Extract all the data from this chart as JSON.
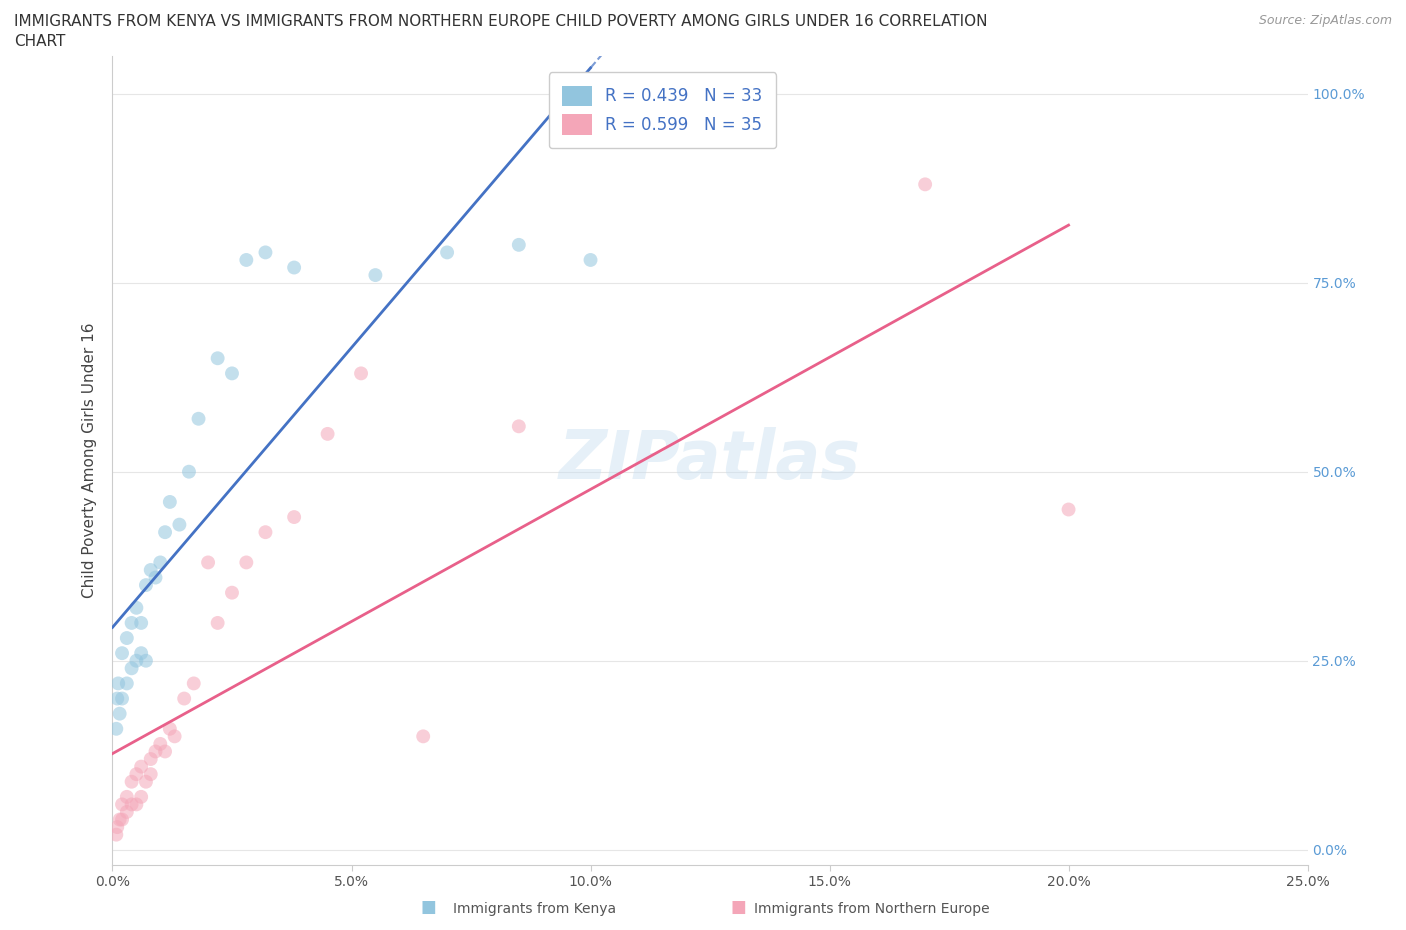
{
  "title_line1": "IMMIGRANTS FROM KENYA VS IMMIGRANTS FROM NORTHERN EUROPE CHILD POVERTY AMONG GIRLS UNDER 16 CORRELATION",
  "title_line2": "CHART",
  "source": "Source: ZipAtlas.com",
  "ylabel": "Child Poverty Among Girls Under 16",
  "watermark": "ZIPatlas",
  "color_kenya": "#92c5de",
  "color_north_europe": "#f4a6b8",
  "color_line_kenya": "#4472c4",
  "color_line_ne": "#e8608a",
  "color_grid": "#e0e0e0",
  "background_color": "#ffffff",
  "title_fontsize": 11,
  "axis_label_fontsize": 11,
  "tick_fontsize": 10,
  "legend_fontsize": 12,
  "source_fontsize": 9,
  "scatter_size": 100,
  "scatter_alpha": 0.55,
  "kenya_x": [
    0.0008,
    0.001,
    0.0012,
    0.0015,
    0.002,
    0.002,
    0.003,
    0.003,
    0.004,
    0.004,
    0.005,
    0.005,
    0.006,
    0.006,
    0.007,
    0.007,
    0.008,
    0.009,
    0.01,
    0.011,
    0.012,
    0.014,
    0.016,
    0.018,
    0.022,
    0.025,
    0.028,
    0.032,
    0.038,
    0.055,
    0.07,
    0.085,
    0.1
  ],
  "kenya_y": [
    0.16,
    0.2,
    0.22,
    0.18,
    0.2,
    0.26,
    0.22,
    0.28,
    0.24,
    0.3,
    0.25,
    0.32,
    0.26,
    0.3,
    0.25,
    0.35,
    0.37,
    0.36,
    0.38,
    0.42,
    0.46,
    0.43,
    0.5,
    0.57,
    0.65,
    0.63,
    0.78,
    0.79,
    0.77,
    0.76,
    0.79,
    0.8,
    0.78
  ],
  "ne_x": [
    0.0008,
    0.001,
    0.0015,
    0.002,
    0.002,
    0.003,
    0.003,
    0.004,
    0.004,
    0.005,
    0.005,
    0.006,
    0.006,
    0.007,
    0.008,
    0.008,
    0.009,
    0.01,
    0.011,
    0.012,
    0.013,
    0.015,
    0.017,
    0.02,
    0.022,
    0.025,
    0.028,
    0.032,
    0.038,
    0.045,
    0.052,
    0.065,
    0.085,
    0.17,
    0.2
  ],
  "ne_y": [
    0.02,
    0.03,
    0.04,
    0.04,
    0.06,
    0.05,
    0.07,
    0.06,
    0.09,
    0.06,
    0.1,
    0.07,
    0.11,
    0.09,
    0.1,
    0.12,
    0.13,
    0.14,
    0.13,
    0.16,
    0.15,
    0.2,
    0.22,
    0.38,
    0.3,
    0.34,
    0.38,
    0.42,
    0.44,
    0.55,
    0.63,
    0.15,
    0.56,
    0.88,
    0.45
  ],
  "xlim": [
    0.0,
    0.25
  ],
  "ylim": [
    -0.02,
    1.05
  ],
  "xticks": [
    0.0,
    0.05,
    0.1,
    0.15,
    0.2,
    0.25
  ],
  "yticks": [
    0.0,
    0.25,
    0.5,
    0.75,
    1.0
  ],
  "xticklabels": [
    "0.0%",
    "5.0%",
    "10.0%",
    "15.0%",
    "20.0%",
    "25.0%"
  ],
  "yticklabels_left": [
    "",
    "",
    "",
    "",
    ""
  ],
  "yticklabels_right": [
    "0.0%",
    "25.0%",
    "50.0%",
    "75.0%",
    "100.0%"
  ]
}
